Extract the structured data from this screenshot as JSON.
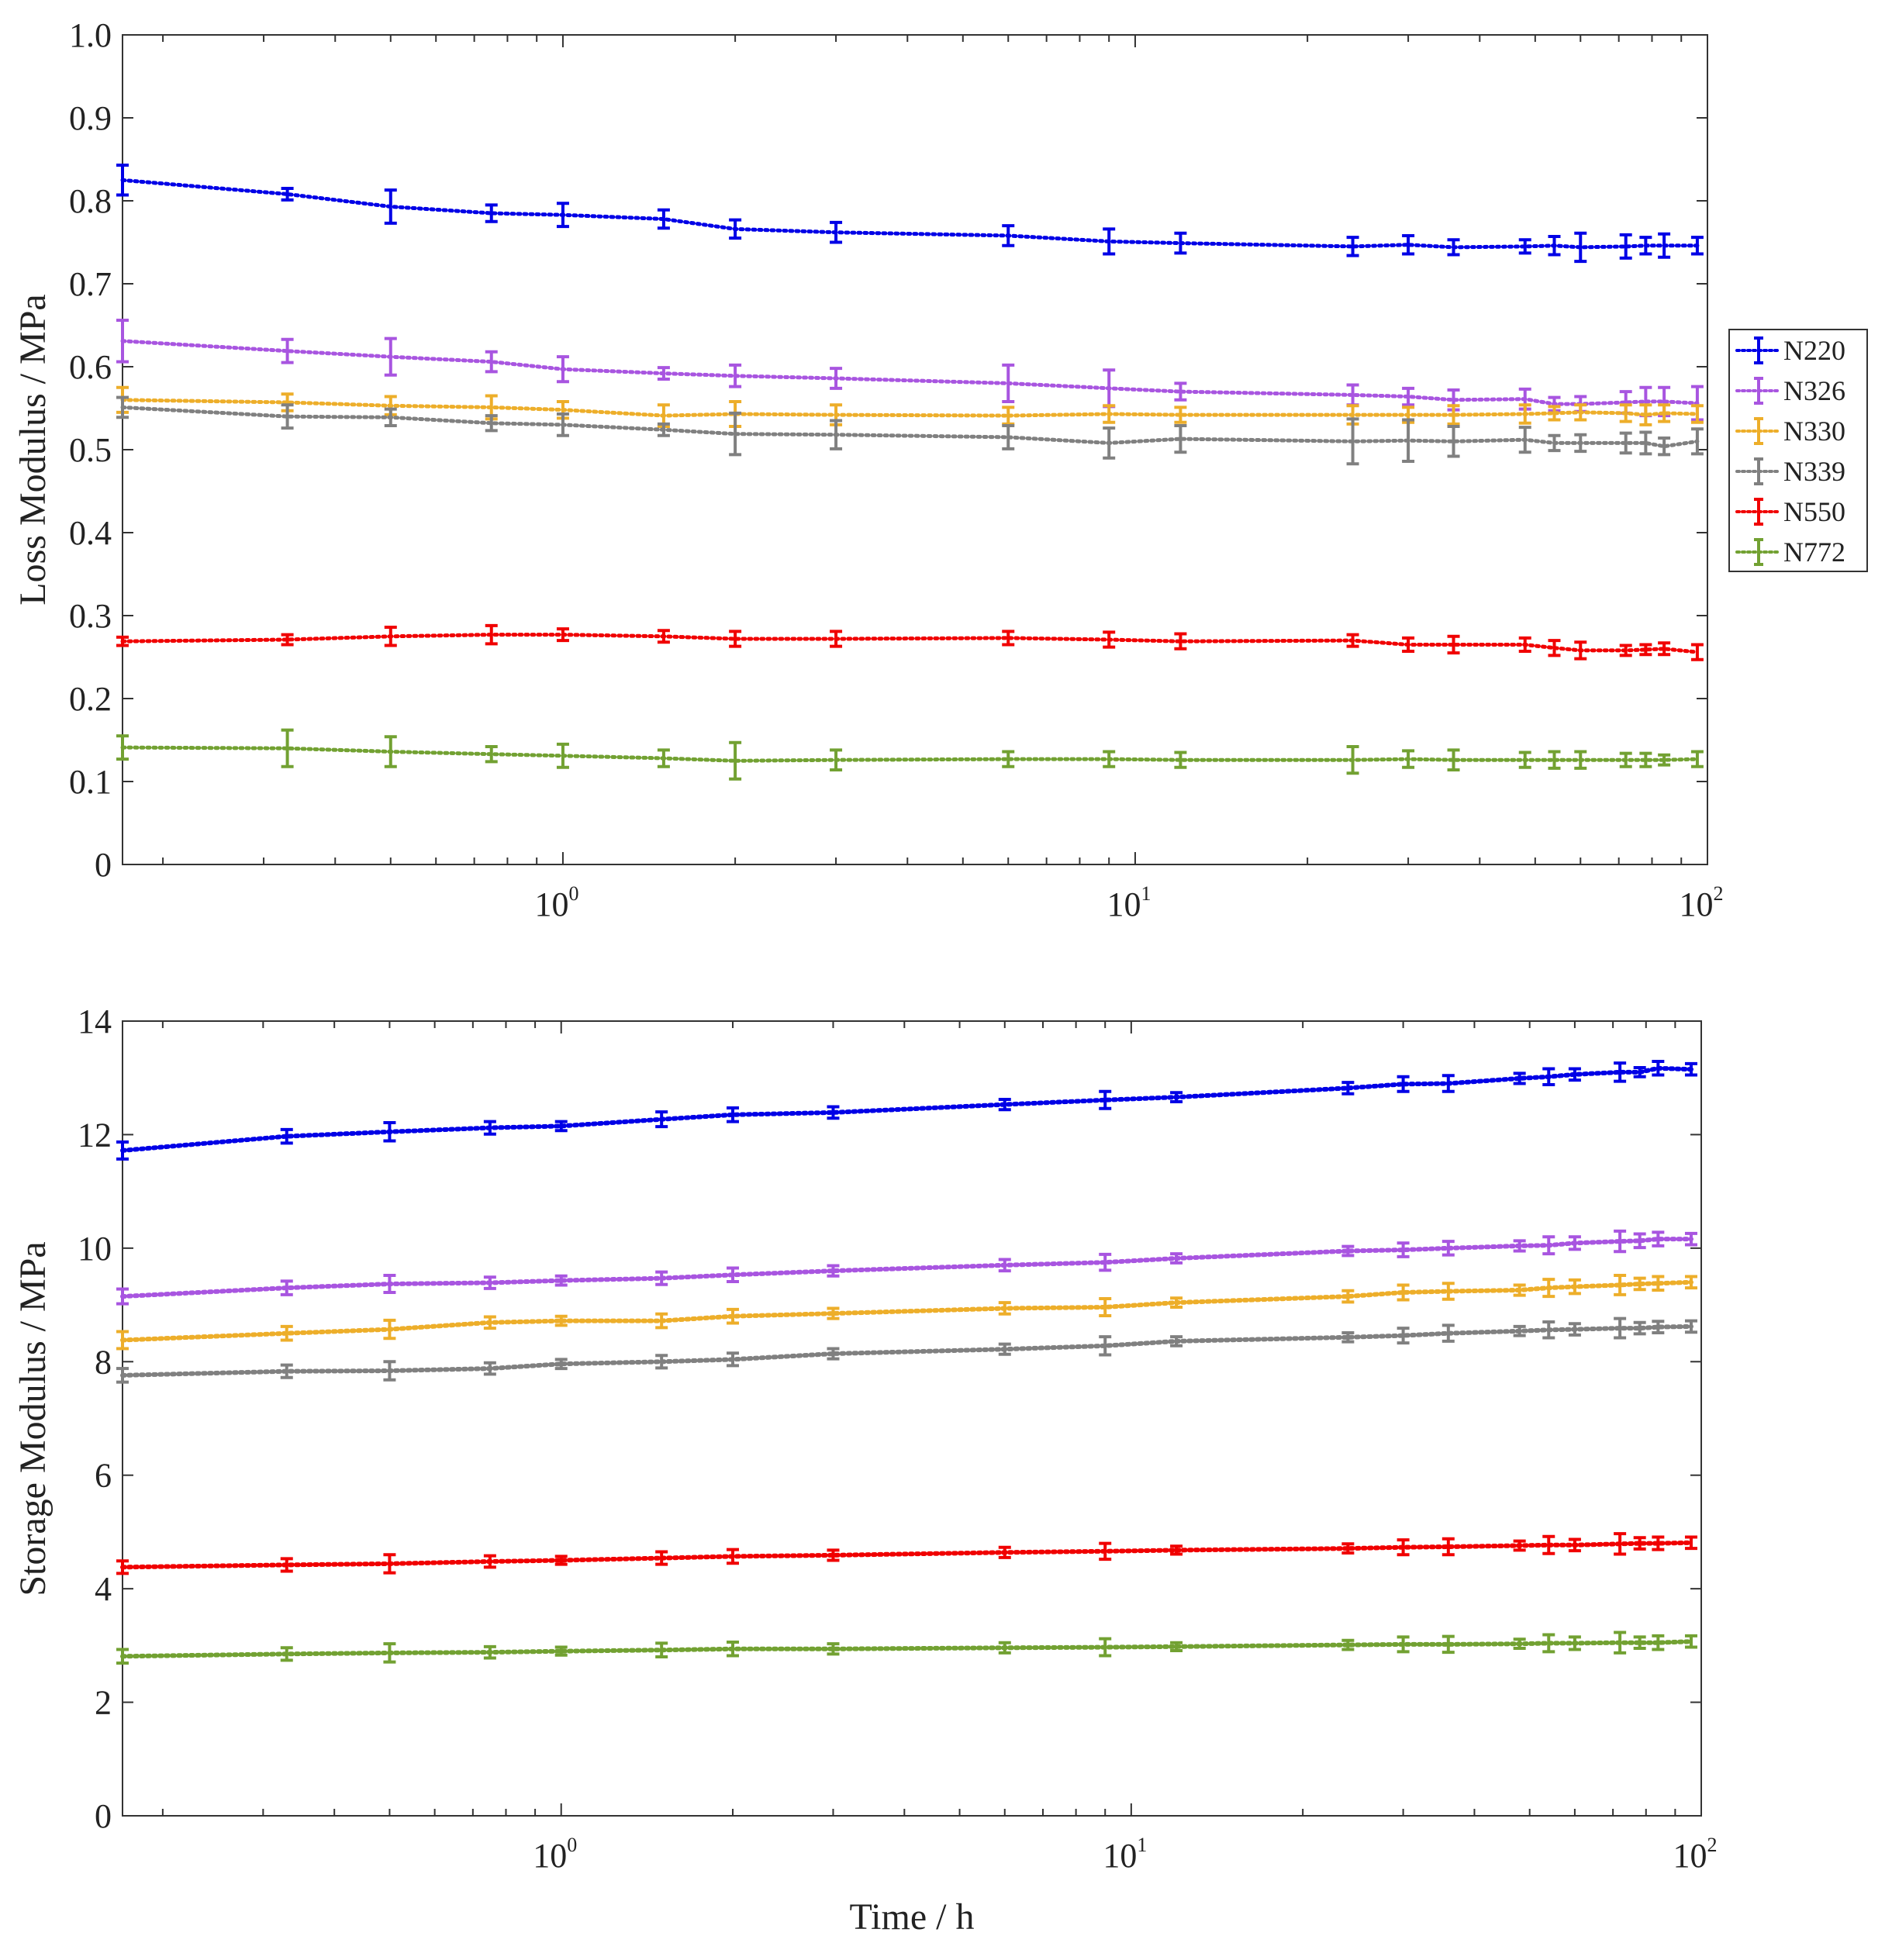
{
  "colors": {
    "N220": "#0000e6",
    "N326": "#a855e0",
    "N330": "#edae2a",
    "N339": "#808080",
    "N550": "#f00000",
    "N772": "#72a132"
  },
  "legend": [
    "N220",
    "N326",
    "N330",
    "N339",
    "N550",
    "N772"
  ],
  "chart_data": [
    {
      "type": "line",
      "title": "",
      "xlabel": "",
      "ylabel": "Loss Modulus / MPa",
      "xscale": "log",
      "xlim": [
        0.17,
        100
      ],
      "ylim": [
        0,
        1.0
      ],
      "yticks": [
        "0",
        "0.1",
        "0.2",
        "0.3",
        "0.4",
        "0.5",
        "0.6",
        "0.7",
        "0.8",
        "0.9",
        "1.0"
      ],
      "xticks": [
        {
          "base": "10",
          "exp": "0"
        },
        {
          "base": "10",
          "exp": "1"
        },
        {
          "base": "10",
          "exp": "2"
        }
      ],
      "x": [
        0.17,
        0.33,
        0.5,
        0.75,
        1,
        1.5,
        2,
        3,
        6,
        9,
        12,
        24,
        30,
        36,
        48,
        54,
        60,
        72,
        78,
        84,
        96
      ],
      "series": [
        {
          "name": "N220",
          "values": [
            0.825,
            0.808,
            0.793,
            0.785,
            0.783,
            0.778,
            0.766,
            0.762,
            0.758,
            0.751,
            0.749,
            0.745,
            0.747,
            0.744,
            0.745,
            0.746,
            0.744,
            0.745,
            0.746,
            0.746,
            0.746
          ],
          "errors": [
            0.018,
            0.007,
            0.02,
            0.01,
            0.014,
            0.011,
            0.011,
            0.012,
            0.012,
            0.015,
            0.012,
            0.011,
            0.011,
            0.009,
            0.008,
            0.011,
            0.017,
            0.014,
            0.01,
            0.014,
            0.01
          ]
        },
        {
          "name": "N326",
          "values": [
            0.631,
            0.619,
            0.612,
            0.606,
            0.597,
            0.592,
            0.589,
            0.586,
            0.58,
            0.574,
            0.57,
            0.566,
            0.564,
            0.56,
            0.561,
            0.555,
            0.555,
            0.557,
            0.558,
            0.558,
            0.556
          ],
          "errors": [
            0.025,
            0.014,
            0.022,
            0.012,
            0.015,
            0.007,
            0.013,
            0.012,
            0.022,
            0.022,
            0.01,
            0.012,
            0.01,
            0.012,
            0.012,
            0.008,
            0.009,
            0.013,
            0.017,
            0.017,
            0.02
          ]
        },
        {
          "name": "N330",
          "values": [
            0.56,
            0.557,
            0.553,
            0.551,
            0.548,
            0.541,
            0.543,
            0.542,
            0.541,
            0.543,
            0.542,
            0.542,
            0.542,
            0.542,
            0.543,
            0.544,
            0.545,
            0.544,
            0.542,
            0.544,
            0.543
          ],
          "errors": [
            0.015,
            0.01,
            0.011,
            0.014,
            0.01,
            0.013,
            0.015,
            0.012,
            0.01,
            0.01,
            0.009,
            0.011,
            0.009,
            0.011,
            0.011,
            0.008,
            0.009,
            0.01,
            0.012,
            0.01,
            0.01
          ]
        },
        {
          "name": "N339",
          "values": [
            0.551,
            0.54,
            0.539,
            0.532,
            0.53,
            0.524,
            0.519,
            0.518,
            0.515,
            0.508,
            0.513,
            0.51,
            0.511,
            0.51,
            0.512,
            0.508,
            0.508,
            0.508,
            0.508,
            0.504,
            0.51
          ],
          "errors": [
            0.012,
            0.014,
            0.01,
            0.009,
            0.013,
            0.007,
            0.025,
            0.017,
            0.014,
            0.018,
            0.016,
            0.027,
            0.025,
            0.018,
            0.015,
            0.009,
            0.01,
            0.012,
            0.013,
            0.01,
            0.015
          ]
        },
        {
          "name": "N550",
          "values": [
            0.269,
            0.271,
            0.275,
            0.277,
            0.277,
            0.275,
            0.272,
            0.272,
            0.273,
            0.271,
            0.269,
            0.27,
            0.265,
            0.265,
            0.265,
            0.261,
            0.258,
            0.258,
            0.259,
            0.26,
            0.256
          ],
          "errors": [
            0.005,
            0.006,
            0.011,
            0.011,
            0.007,
            0.007,
            0.009,
            0.009,
            0.008,
            0.009,
            0.009,
            0.007,
            0.008,
            0.01,
            0.008,
            0.009,
            0.01,
            0.006,
            0.006,
            0.007,
            0.009
          ]
        },
        {
          "name": "N772",
          "values": [
            0.141,
            0.14,
            0.136,
            0.133,
            0.131,
            0.128,
            0.125,
            0.126,
            0.127,
            0.127,
            0.126,
            0.126,
            0.127,
            0.126,
            0.126,
            0.126,
            0.126,
            0.126,
            0.126,
            0.126,
            0.127
          ],
          "errors": [
            0.014,
            0.022,
            0.018,
            0.009,
            0.014,
            0.01,
            0.022,
            0.012,
            0.009,
            0.009,
            0.009,
            0.016,
            0.01,
            0.012,
            0.009,
            0.01,
            0.01,
            0.008,
            0.008,
            0.006,
            0.009
          ]
        }
      ]
    },
    {
      "type": "line",
      "title": "",
      "xlabel": "Time / h",
      "ylabel": "Storage Modulus / MPa",
      "xscale": "log",
      "xlim": [
        0.17,
        100
      ],
      "ylim": [
        0,
        14
      ],
      "yticks": [
        "0",
        "2",
        "4",
        "6",
        "8",
        "10",
        "12",
        "14"
      ],
      "xticks": [
        {
          "base": "10",
          "exp": "0"
        },
        {
          "base": "10",
          "exp": "1"
        },
        {
          "base": "10",
          "exp": "2"
        }
      ],
      "x": [
        0.17,
        0.33,
        0.5,
        0.75,
        1,
        1.5,
        2,
        3,
        6,
        9,
        12,
        24,
        30,
        36,
        48,
        54,
        60,
        72,
        78,
        84,
        96
      ],
      "series": [
        {
          "name": "N220",
          "values": [
            11.72,
            11.97,
            12.05,
            12.12,
            12.15,
            12.27,
            12.35,
            12.39,
            12.53,
            12.61,
            12.66,
            12.82,
            12.89,
            12.9,
            12.99,
            13.02,
            13.06,
            13.1,
            13.1,
            13.17,
            13.15
          ],
          "errors": [
            0.15,
            0.12,
            0.16,
            0.11,
            0.08,
            0.13,
            0.12,
            0.1,
            0.09,
            0.15,
            0.08,
            0.1,
            0.13,
            0.14,
            0.09,
            0.14,
            0.1,
            0.16,
            0.08,
            0.12,
            0.1
          ]
        },
        {
          "name": "N326",
          "values": [
            9.15,
            9.3,
            9.37,
            9.39,
            9.43,
            9.47,
            9.53,
            9.6,
            9.7,
            9.75,
            9.82,
            9.95,
            9.97,
            10.0,
            10.04,
            10.05,
            10.09,
            10.12,
            10.13,
            10.16,
            10.16
          ],
          "errors": [
            0.13,
            0.12,
            0.15,
            0.1,
            0.08,
            0.11,
            0.12,
            0.09,
            0.1,
            0.14,
            0.08,
            0.08,
            0.12,
            0.12,
            0.09,
            0.15,
            0.11,
            0.18,
            0.12,
            0.12,
            0.1
          ]
        },
        {
          "name": "N330",
          "values": [
            8.38,
            8.5,
            8.57,
            8.69,
            8.72,
            8.72,
            8.8,
            8.85,
            8.94,
            8.96,
            9.04,
            9.15,
            9.22,
            9.24,
            9.26,
            9.3,
            9.32,
            9.35,
            9.37,
            9.38,
            9.4
          ],
          "errors": [
            0.15,
            0.12,
            0.16,
            0.1,
            0.08,
            0.12,
            0.12,
            0.09,
            0.1,
            0.15,
            0.08,
            0.1,
            0.13,
            0.14,
            0.09,
            0.15,
            0.12,
            0.17,
            0.1,
            0.12,
            0.1
          ]
        },
        {
          "name": "N339",
          "values": [
            7.76,
            7.83,
            7.84,
            7.88,
            7.96,
            8.0,
            8.04,
            8.14,
            8.22,
            8.28,
            8.36,
            8.43,
            8.46,
            8.5,
            8.54,
            8.56,
            8.57,
            8.59,
            8.59,
            8.61,
            8.62
          ],
          "errors": [
            0.12,
            0.11,
            0.16,
            0.1,
            0.08,
            0.11,
            0.11,
            0.09,
            0.09,
            0.16,
            0.08,
            0.08,
            0.13,
            0.14,
            0.08,
            0.14,
            0.1,
            0.17,
            0.1,
            0.1,
            0.1
          ]
        },
        {
          "name": "N550",
          "values": [
            4.38,
            4.42,
            4.44,
            4.48,
            4.5,
            4.54,
            4.57,
            4.59,
            4.64,
            4.66,
            4.68,
            4.71,
            4.73,
            4.74,
            4.76,
            4.77,
            4.77,
            4.79,
            4.8,
            4.8,
            4.81
          ],
          "errors": [
            0.11,
            0.11,
            0.16,
            0.1,
            0.07,
            0.11,
            0.12,
            0.09,
            0.09,
            0.14,
            0.07,
            0.08,
            0.13,
            0.14,
            0.08,
            0.15,
            0.1,
            0.18,
            0.1,
            0.11,
            0.1
          ]
        },
        {
          "name": "N772",
          "values": [
            2.81,
            2.85,
            2.87,
            2.88,
            2.9,
            2.92,
            2.94,
            2.94,
            2.96,
            2.97,
            2.98,
            3.01,
            3.02,
            3.02,
            3.03,
            3.04,
            3.04,
            3.05,
            3.05,
            3.05,
            3.07
          ],
          "errors": [
            0.12,
            0.11,
            0.16,
            0.1,
            0.07,
            0.12,
            0.12,
            0.09,
            0.09,
            0.15,
            0.07,
            0.08,
            0.13,
            0.14,
            0.08,
            0.15,
            0.11,
            0.18,
            0.1,
            0.12,
            0.1
          ]
        }
      ]
    }
  ]
}
